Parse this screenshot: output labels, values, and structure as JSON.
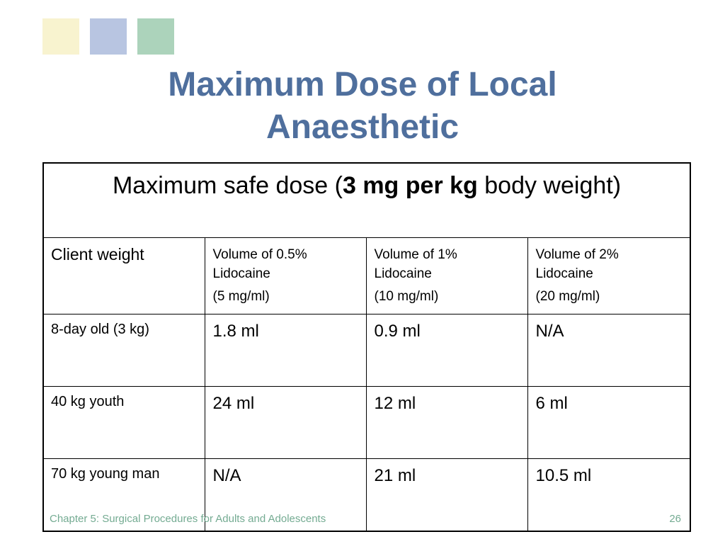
{
  "slide": {
    "title_line1": "Maximum Dose of Local",
    "title_line2": "Anaesthetic",
    "title_color": "#4f6f9d",
    "decor_colors": [
      "#f8f3cf",
      "#b8c5e1",
      "#acd3bb"
    ],
    "footer_text": "Chapter 5: Surgical Procedures for Adults and Adolescents",
    "footer_color": "#74ab92",
    "page_number": "26"
  },
  "table": {
    "banner": {
      "prefix": "Maximum safe dose (",
      "bold": "3 mg per kg",
      "suffix": " body weight)"
    },
    "headers": [
      {
        "label": "Client weight"
      },
      {
        "line1": "Volume of 0.5%",
        "line2": "Lidocaine",
        "conc": "(5 mg/ml)"
      },
      {
        "line1": "Volume of 1%",
        "line2": "Lidocaine",
        "conc": "(10 mg/ml)"
      },
      {
        "line1": "Volume of 2%",
        "line2": "Lidocaine",
        "conc": "(20 mg/ml)"
      }
    ],
    "rows": [
      {
        "weight": "8-day old (3 kg)",
        "v05": "1.8 ml",
        "v1": "0.9 ml",
        "v2": "N/A"
      },
      {
        "weight": "40 kg youth",
        "v05": "24 ml",
        "v1": "12 ml",
        "v2": "6 ml"
      },
      {
        "weight": "70 kg young man",
        "v05": "N/A",
        "v1": "21 ml",
        "v2": "10.5 ml"
      }
    ]
  }
}
